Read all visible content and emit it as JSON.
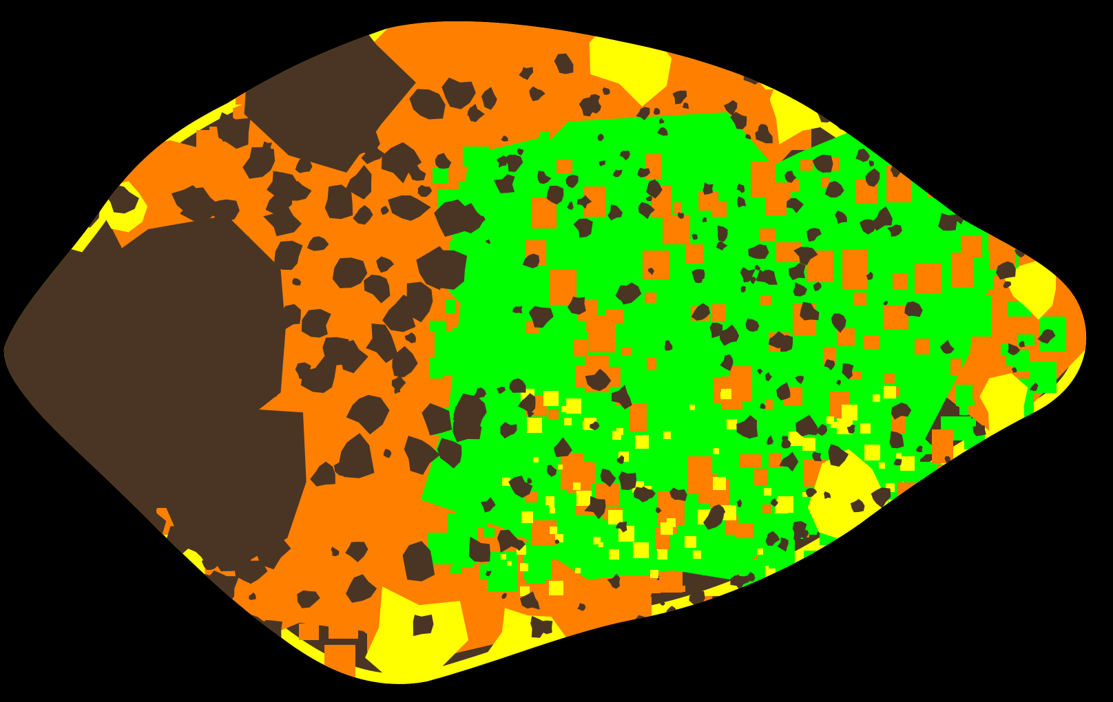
{
  "image": {
    "background_color": "#000000",
    "class_colors": {
      "background": "#000000",
      "brown": "#4a3524",
      "orange": "#ff8000",
      "yellow": "#ffff00",
      "green": "#00ff00"
    }
  }
}
